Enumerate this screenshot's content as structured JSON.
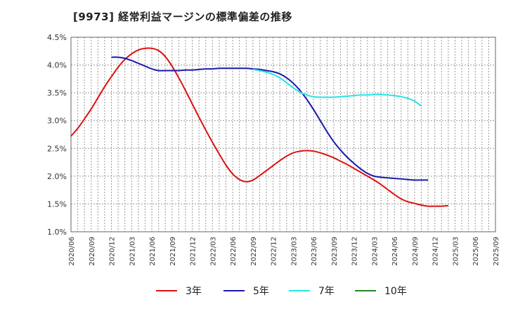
{
  "title": "[9973]  経常利益マージンの標準偏差の推移",
  "chart_data": {
    "type": "line",
    "title": "[9973]  経常利益マージンの標準偏差の推移",
    "xlabel": "",
    "ylabel": "",
    "ylim": [
      1.0,
      4.5
    ],
    "y_ticks": [
      "1.0%",
      "1.5%",
      "2.0%",
      "2.5%",
      "3.0%",
      "3.5%",
      "4.0%",
      "4.5%"
    ],
    "x_ticks": [
      "2020/06",
      "2020/09",
      "2020/12",
      "2021/03",
      "2021/06",
      "2021/09",
      "2021/12",
      "2022/03",
      "2022/06",
      "2022/09",
      "2022/12",
      "2023/03",
      "2023/06",
      "2023/09",
      "2023/12",
      "2024/03",
      "2024/06",
      "2024/09",
      "2024/12",
      "2025/03",
      "2025/06",
      "2025/09"
    ],
    "grid": true,
    "legend_position": "bottom",
    "series": [
      {
        "name": "3年",
        "color": "#dd1111",
        "points": [
          [
            "2020/06",
            2.72
          ],
          [
            "2020/07",
            2.86
          ],
          [
            "2020/08",
            3.03
          ],
          [
            "2020/09",
            3.21
          ],
          [
            "2020/10",
            3.41
          ],
          [
            "2020/11",
            3.61
          ],
          [
            "2020/12",
            3.79
          ],
          [
            "2021/01",
            3.96
          ],
          [
            "2021/02",
            4.1
          ],
          [
            "2021/03",
            4.2
          ],
          [
            "2021/04",
            4.27
          ],
          [
            "2021/05",
            4.3
          ],
          [
            "2021/06",
            4.3
          ],
          [
            "2021/07",
            4.26
          ],
          [
            "2021/08",
            4.15
          ],
          [
            "2021/09",
            3.98
          ],
          [
            "2021/10",
            3.77
          ],
          [
            "2021/11",
            3.54
          ],
          [
            "2021/12",
            3.3
          ],
          [
            "2022/01",
            3.06
          ],
          [
            "2022/02",
            2.83
          ],
          [
            "2022/03",
            2.61
          ],
          [
            "2022/04",
            2.4
          ],
          [
            "2022/05",
            2.2
          ],
          [
            "2022/06",
            2.04
          ],
          [
            "2022/07",
            1.94
          ],
          [
            "2022/08",
            1.9
          ],
          [
            "2022/09",
            1.93
          ],
          [
            "2022/10",
            2.01
          ],
          [
            "2022/11",
            2.1
          ],
          [
            "2022/12",
            2.19
          ],
          [
            "2023/01",
            2.28
          ],
          [
            "2023/02",
            2.36
          ],
          [
            "2023/03",
            2.42
          ],
          [
            "2023/04",
            2.45
          ],
          [
            "2023/05",
            2.46
          ],
          [
            "2023/06",
            2.45
          ],
          [
            "2023/07",
            2.42
          ],
          [
            "2023/08",
            2.38
          ],
          [
            "2023/09",
            2.33
          ],
          [
            "2023/10",
            2.27
          ],
          [
            "2023/11",
            2.21
          ],
          [
            "2023/12",
            2.14
          ],
          [
            "2024/01",
            2.07
          ],
          [
            "2024/02",
            2.0
          ],
          [
            "2024/03",
            1.93
          ],
          [
            "2024/04",
            1.85
          ],
          [
            "2024/05",
            1.76
          ],
          [
            "2024/06",
            1.67
          ],
          [
            "2024/07",
            1.59
          ],
          [
            "2024/08",
            1.54
          ],
          [
            "2024/09",
            1.51
          ],
          [
            "2024/10",
            1.48
          ],
          [
            "2024/11",
            1.46
          ],
          [
            "2024/12",
            1.46
          ],
          [
            "2025/01",
            1.46
          ],
          [
            "2025/02",
            1.47
          ]
        ]
      },
      {
        "name": "5年",
        "color": "#1a1aaa",
        "points": [
          [
            "2020/12",
            4.14
          ],
          [
            "2021/01",
            4.14
          ],
          [
            "2021/02",
            4.12
          ],
          [
            "2021/03",
            4.08
          ],
          [
            "2021/04",
            4.03
          ],
          [
            "2021/05",
            3.98
          ],
          [
            "2021/06",
            3.93
          ],
          [
            "2021/07",
            3.9
          ],
          [
            "2021/08",
            3.9
          ],
          [
            "2021/09",
            3.9
          ],
          [
            "2021/10",
            3.9
          ],
          [
            "2021/11",
            3.91
          ],
          [
            "2021/12",
            3.91
          ],
          [
            "2022/01",
            3.92
          ],
          [
            "2022/02",
            3.93
          ],
          [
            "2022/03",
            3.93
          ],
          [
            "2022/04",
            3.94
          ],
          [
            "2022/05",
            3.94
          ],
          [
            "2022/06",
            3.94
          ],
          [
            "2022/07",
            3.94
          ],
          [
            "2022/08",
            3.94
          ],
          [
            "2022/09",
            3.93
          ],
          [
            "2022/10",
            3.92
          ],
          [
            "2022/11",
            3.9
          ],
          [
            "2022/12",
            3.88
          ],
          [
            "2023/01",
            3.84
          ],
          [
            "2023/02",
            3.77
          ],
          [
            "2023/03",
            3.67
          ],
          [
            "2023/04",
            3.54
          ],
          [
            "2023/05",
            3.38
          ],
          [
            "2023/06",
            3.2
          ],
          [
            "2023/07",
            3.0
          ],
          [
            "2023/08",
            2.8
          ],
          [
            "2023/09",
            2.62
          ],
          [
            "2023/10",
            2.47
          ],
          [
            "2023/11",
            2.34
          ],
          [
            "2023/12",
            2.23
          ],
          [
            "2024/01",
            2.13
          ],
          [
            "2024/02",
            2.05
          ],
          [
            "2024/03",
            2.0
          ],
          [
            "2024/04",
            1.98
          ],
          [
            "2024/05",
            1.97
          ],
          [
            "2024/06",
            1.96
          ],
          [
            "2024/07",
            1.95
          ],
          [
            "2024/08",
            1.94
          ],
          [
            "2024/09",
            1.93
          ],
          [
            "2024/10",
            1.93
          ],
          [
            "2024/11",
            1.93
          ]
        ]
      },
      {
        "name": "7年",
        "color": "#22e5e5",
        "points": [
          [
            "2022/09",
            3.92
          ],
          [
            "2022/10",
            3.9
          ],
          [
            "2022/11",
            3.87
          ],
          [
            "2022/12",
            3.83
          ],
          [
            "2023/01",
            3.77
          ],
          [
            "2023/02",
            3.68
          ],
          [
            "2023/03",
            3.59
          ],
          [
            "2023/04",
            3.51
          ],
          [
            "2023/05",
            3.46
          ],
          [
            "2023/06",
            3.43
          ],
          [
            "2023/07",
            3.42
          ],
          [
            "2023/08",
            3.42
          ],
          [
            "2023/09",
            3.42
          ],
          [
            "2023/10",
            3.43
          ],
          [
            "2023/11",
            3.44
          ],
          [
            "2023/12",
            3.45
          ],
          [
            "2024/01",
            3.46
          ],
          [
            "2024/02",
            3.46
          ],
          [
            "2024/03",
            3.47
          ],
          [
            "2024/04",
            3.47
          ],
          [
            "2024/05",
            3.46
          ],
          [
            "2024/06",
            3.45
          ],
          [
            "2024/07",
            3.43
          ],
          [
            "2024/08",
            3.4
          ],
          [
            "2024/09",
            3.35
          ],
          [
            "2024/10",
            3.26
          ]
        ]
      },
      {
        "name": "10年",
        "color": "#228822",
        "points": []
      }
    ]
  }
}
